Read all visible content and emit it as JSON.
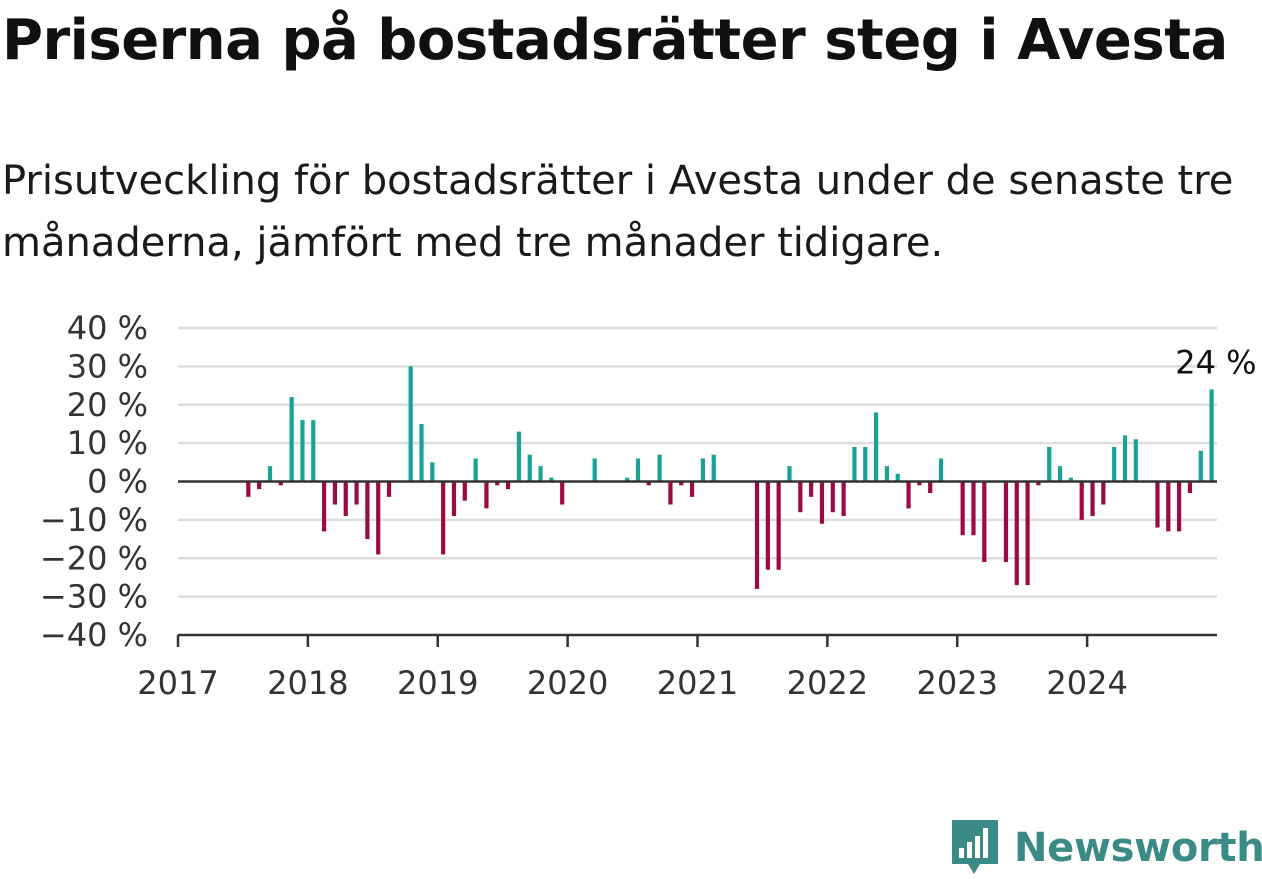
{
  "title": "Priserna på bostadsrätter steg i Avesta",
  "subtitle": "Prisutveckling för bostadsrätter i Avesta under de senaste tre månaderna, jämfört med tre månader tidigare.",
  "colors": {
    "positive": "#1aa394",
    "negative": "#9b0a45",
    "grid": "#dddddd",
    "axis": "#333333",
    "brand": "#3a8a86"
  },
  "logo": {
    "name": "newsworthy-icon",
    "text": "Newsworthy"
  },
  "chart_data": {
    "type": "bar",
    "x_start": "2017-01",
    "x_end": "2024-12",
    "x_unit": "month",
    "ylim": [
      -40,
      40
    ],
    "yticks": [
      40,
      30,
      20,
      10,
      0,
      -10,
      -20,
      -30,
      -40
    ],
    "ytick_labels": [
      "40 %",
      "30 %",
      "20 %",
      "10 %",
      "0 %",
      "−10 %",
      "−20 %",
      "−30 %",
      "−40 %"
    ],
    "xticks": [
      "2017",
      "2018",
      "2019",
      "2020",
      "2021",
      "2022",
      "2023",
      "2024"
    ],
    "grid": true,
    "values": [
      null,
      null,
      null,
      null,
      null,
      null,
      -4,
      -2,
      4,
      -1,
      22,
      16,
      16,
      -13,
      -6,
      -9,
      -6,
      -15,
      -19,
      -4,
      null,
      30,
      15,
      5,
      -19,
      -9,
      -5,
      6,
      -7,
      -1,
      -2,
      13,
      7,
      4,
      1,
      -6,
      null,
      null,
      6,
      null,
      null,
      1,
      6,
      -1,
      7,
      -6,
      -1,
      -4,
      6,
      7,
      null,
      null,
      null,
      -28,
      -23,
      -23,
      4,
      -8,
      -4,
      -11,
      -8,
      -9,
      9,
      9,
      18,
      4,
      2,
      -7,
      -1,
      -3,
      6,
      null,
      -14,
      -14,
      -21,
      null,
      -21,
      -27,
      -27,
      -1,
      9,
      4,
      1,
      -10,
      -9,
      -6,
      9,
      12,
      11,
      null,
      -12,
      -13,
      -13,
      -3,
      8,
      24
    ],
    "annotation": {
      "label": "24 %"
    }
  }
}
